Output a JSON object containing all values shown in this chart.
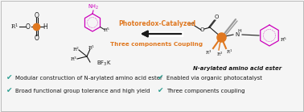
{
  "bg_color": "#f5f5f5",
  "check_color": "#2a9d8f",
  "text_color": "#1a1a1a",
  "magenta_color": "#cc00bb",
  "orange_color": "#e07820",
  "gray_color": "#999999",
  "dark_gray": "#555555",
  "arrow_label_top": "Photoredox-Catalyzed",
  "arrow_label_bottom": "Three components Coupling",
  "product_label": "N-arylated amino acid ester",
  "bullet1": "Modular construction of N-arylated amino acid ester",
  "bullet2": "Broad functional group tolerance and high yield",
  "bullet3": "Enabled via organic photocatalyst",
  "bullet4": "Three components coupling"
}
